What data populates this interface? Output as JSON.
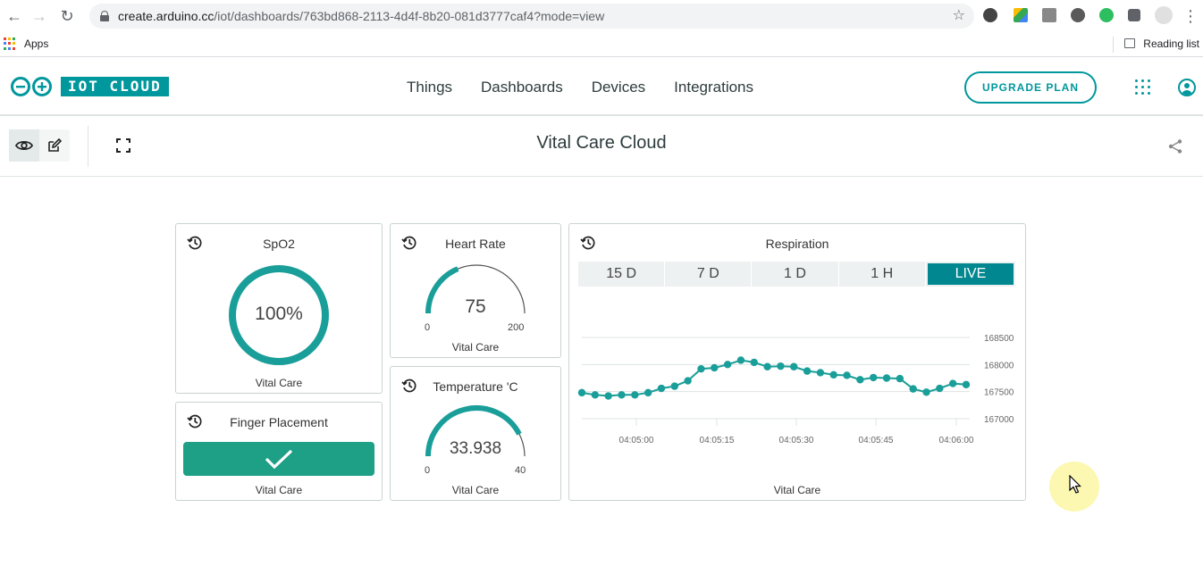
{
  "browser": {
    "url_host": "create.arduino.cc",
    "url_path": "/iot/dashboards/763bd868-2113-4d4f-8b20-081d3777caf4?mode=view",
    "bookmarks_apps": "Apps",
    "reading_list": "Reading list"
  },
  "header": {
    "logo_text": "IOT CLOUD",
    "nav": [
      "Things",
      "Dashboards",
      "Devices",
      "Integrations"
    ],
    "upgrade_label": "UPGRADE PLAN"
  },
  "dashboard": {
    "title": "Vital Care Cloud"
  },
  "widgets": {
    "spo2": {
      "title": "SpO2",
      "value": "100%",
      "fraction": 1.0,
      "footer": "Vital Care"
    },
    "finger": {
      "title": "Finger Placement",
      "footer": "Vital Care",
      "status": "checked"
    },
    "heart": {
      "title": "Heart Rate",
      "value": "75",
      "min": "0",
      "max": "200",
      "value_num": 75,
      "min_num": 0,
      "max_num": 200,
      "footer": "Vital Care"
    },
    "temp": {
      "title": "Temperature 'C",
      "value": "33.938",
      "min": "0",
      "max": "40",
      "value_num": 33.938,
      "min_num": 0,
      "max_num": 40,
      "footer": "Vital Care"
    },
    "respiration": {
      "title": "Respiration",
      "tabs": [
        "15 D",
        "7 D",
        "1 D",
        "1 H",
        "LIVE"
      ],
      "active_tab": "LIVE",
      "footer": "Vital Care"
    }
  },
  "chart_data": {
    "type": "line",
    "title": "Respiration",
    "x_ticks": [
      "04:05:00",
      "04:05:15",
      "04:05:30",
      "04:05:45",
      "04:06:00"
    ],
    "y_ticks": [
      168500,
      168000,
      167500,
      167000
    ],
    "ylim": [
      167000,
      168500
    ],
    "grid": true,
    "series": [
      {
        "values": [
          167480,
          167440,
          167420,
          167440,
          167440,
          167480,
          167560,
          167600,
          167700,
          167920,
          167940,
          168000,
          168080,
          168040,
          167960,
          167970,
          167960,
          167880,
          167850,
          167810,
          167800,
          167720,
          167760,
          167750,
          167740,
          167550,
          167490,
          167560,
          167650,
          167630
        ]
      }
    ],
    "color": "#1a9e99"
  },
  "colors": {
    "teal": "#00979d",
    "widget_teal": "#1a9e99",
    "finger_green": "#1da086"
  }
}
